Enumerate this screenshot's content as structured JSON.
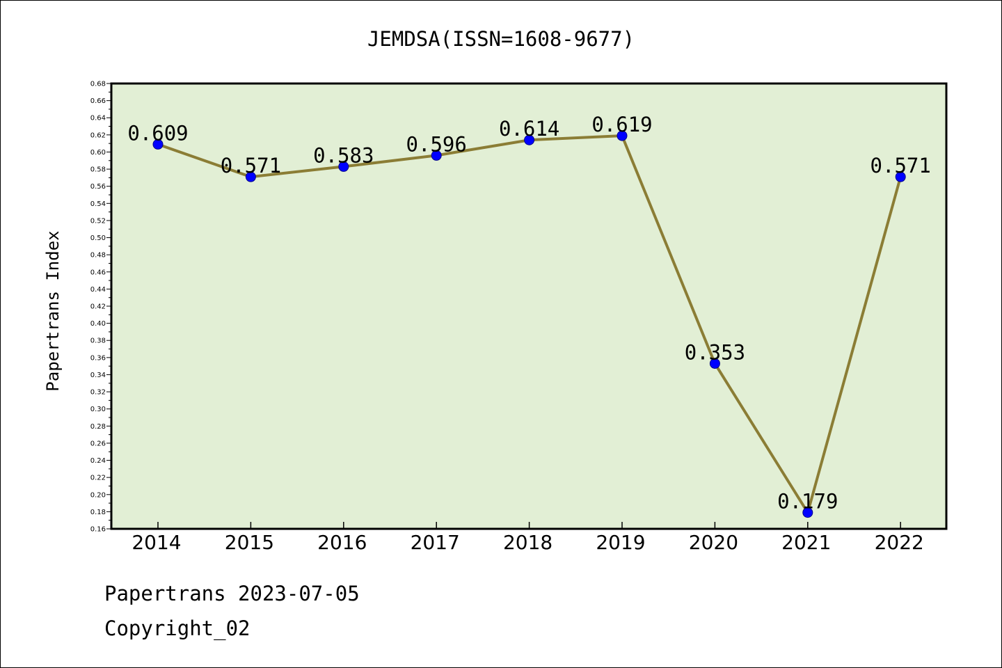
{
  "chart_data": {
    "type": "line",
    "title": "JEMDSA(ISSN=1608-9677)",
    "xlabel": "",
    "ylabel": "Papertrans Index",
    "categories": [
      "2014",
      "2015",
      "2016",
      "2017",
      "2018",
      "2019",
      "2020",
      "2021",
      "2022"
    ],
    "values": [
      0.609,
      0.571,
      0.583,
      0.596,
      0.614,
      0.619,
      0.353,
      0.179,
      0.571
    ],
    "data_labels": [
      "0.609",
      "0.571",
      "0.583",
      "0.596",
      "0.614",
      "0.619",
      "0.353",
      "0.179",
      "0.571"
    ],
    "ylim": [
      0.16,
      0.68
    ],
    "yticks": [
      "0.16",
      "0.18",
      "0.20",
      "0.22",
      "0.24",
      "0.26",
      "0.28",
      "0.30",
      "0.32",
      "0.34",
      "0.36",
      "0.38",
      "0.40",
      "0.42",
      "0.44",
      "0.46",
      "0.48",
      "0.50",
      "0.52",
      "0.54",
      "0.56",
      "0.58",
      "0.60",
      "0.62",
      "0.64",
      "0.66",
      "0.68"
    ],
    "grid": false,
    "colors": {
      "plot_background": "#e2efd5",
      "line": "#8b7d35",
      "marker": "#0000ff"
    }
  },
  "footer": {
    "line1": "Papertrans 2023-07-05",
    "line2": "Copyright_02"
  }
}
